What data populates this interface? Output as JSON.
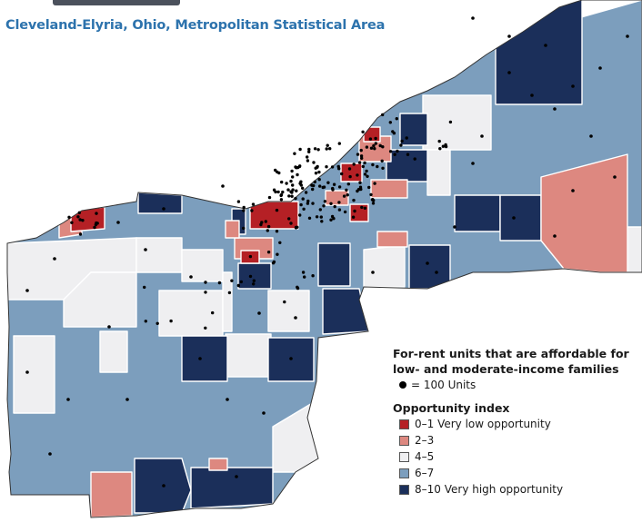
{
  "map": {
    "title": "Cleveland-Elyria, Ohio, Metropolitan Statistical Area",
    "colors": {
      "very_low": "#b52025",
      "low": "#dd8880",
      "moderate": "#efeff1",
      "high": "#7c9ebd",
      "very_high": "#1b2f5a",
      "outline": "#ffffff",
      "dots": "#000000"
    }
  },
  "legend": {
    "units_heading_line1": "For-rent units that are affordable for",
    "units_heading_line2": "low- and moderate-income families",
    "units_label": "= 100 Units",
    "index_heading": "Opportunity index",
    "categories": [
      {
        "label": "0–1 Very low opportunity",
        "color": "#b52025"
      },
      {
        "label": "2–3",
        "color": "#dd8880"
      },
      {
        "label": "4–5",
        "color": "#efeff1"
      },
      {
        "label": "6–7",
        "color": "#7c9ebd"
      },
      {
        "label": "8–10 Very high opportunity",
        "color": "#1b2f5a"
      }
    ]
  }
}
